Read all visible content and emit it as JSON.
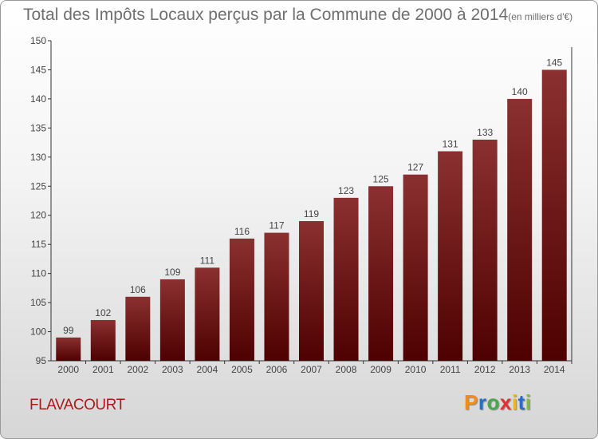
{
  "header": {
    "title": "Total des Impôts Locaux perçus par la Commune de 2000 à 2014",
    "unit": "(en milliers d'€)"
  },
  "footer": {
    "commune": "FLAVACOURT",
    "logo": [
      "P",
      "r",
      "o",
      "x",
      "i",
      "t",
      "i"
    ],
    "logo_colors": [
      "#f28c1e",
      "#2a6fbf",
      "#4aa84a",
      "#e53030",
      "#f0b429",
      "#2a6fbf",
      "#7bbf3a"
    ]
  },
  "chart_data": {
    "type": "bar",
    "categories": [
      "2000",
      "2001",
      "2002",
      "2003",
      "2004",
      "2005",
      "2006",
      "2007",
      "2008",
      "2009",
      "2010",
      "2011",
      "2012",
      "2013",
      "2014"
    ],
    "values": [
      99,
      102,
      106,
      109,
      111,
      116,
      117,
      119,
      123,
      125,
      127,
      131,
      133,
      140,
      145
    ],
    "ylim": [
      95,
      150
    ],
    "yticks": [
      95,
      100,
      105,
      110,
      115,
      120,
      125,
      130,
      135,
      140,
      145,
      150
    ],
    "bar_color_top": "#8b3030",
    "bar_color_bottom": "#4e0000",
    "grid": false
  }
}
